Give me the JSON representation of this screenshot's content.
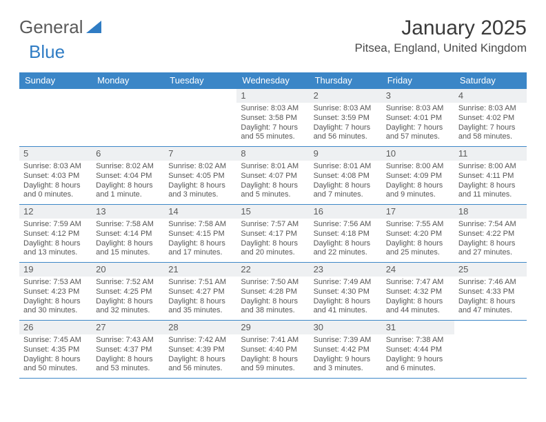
{
  "brand": {
    "word1": "General",
    "word2": "Blue"
  },
  "title": "January 2025",
  "location": "Pitsea, England, United Kingdom",
  "colors": {
    "header_bg": "#3b86c7",
    "header_text": "#ffffff",
    "daynum_bg": "#eef0f2",
    "rule": "#3b86c7",
    "body_text": "#555555",
    "brand_grey": "#5a5a5a",
    "brand_blue": "#2f7cc4"
  },
  "day_names": [
    "Sunday",
    "Monday",
    "Tuesday",
    "Wednesday",
    "Thursday",
    "Friday",
    "Saturday"
  ],
  "weeks": [
    [
      null,
      null,
      null,
      {
        "n": "1",
        "sr": "Sunrise: 8:03 AM",
        "ss": "Sunset: 3:58 PM",
        "d1": "Daylight: 7 hours",
        "d2": "and 55 minutes."
      },
      {
        "n": "2",
        "sr": "Sunrise: 8:03 AM",
        "ss": "Sunset: 3:59 PM",
        "d1": "Daylight: 7 hours",
        "d2": "and 56 minutes."
      },
      {
        "n": "3",
        "sr": "Sunrise: 8:03 AM",
        "ss": "Sunset: 4:01 PM",
        "d1": "Daylight: 7 hours",
        "d2": "and 57 minutes."
      },
      {
        "n": "4",
        "sr": "Sunrise: 8:03 AM",
        "ss": "Sunset: 4:02 PM",
        "d1": "Daylight: 7 hours",
        "d2": "and 58 minutes."
      }
    ],
    [
      {
        "n": "5",
        "sr": "Sunrise: 8:03 AM",
        "ss": "Sunset: 4:03 PM",
        "d1": "Daylight: 8 hours",
        "d2": "and 0 minutes."
      },
      {
        "n": "6",
        "sr": "Sunrise: 8:02 AM",
        "ss": "Sunset: 4:04 PM",
        "d1": "Daylight: 8 hours",
        "d2": "and 1 minute."
      },
      {
        "n": "7",
        "sr": "Sunrise: 8:02 AM",
        "ss": "Sunset: 4:05 PM",
        "d1": "Daylight: 8 hours",
        "d2": "and 3 minutes."
      },
      {
        "n": "8",
        "sr": "Sunrise: 8:01 AM",
        "ss": "Sunset: 4:07 PM",
        "d1": "Daylight: 8 hours",
        "d2": "and 5 minutes."
      },
      {
        "n": "9",
        "sr": "Sunrise: 8:01 AM",
        "ss": "Sunset: 4:08 PM",
        "d1": "Daylight: 8 hours",
        "d2": "and 7 minutes."
      },
      {
        "n": "10",
        "sr": "Sunrise: 8:00 AM",
        "ss": "Sunset: 4:09 PM",
        "d1": "Daylight: 8 hours",
        "d2": "and 9 minutes."
      },
      {
        "n": "11",
        "sr": "Sunrise: 8:00 AM",
        "ss": "Sunset: 4:11 PM",
        "d1": "Daylight: 8 hours",
        "d2": "and 11 minutes."
      }
    ],
    [
      {
        "n": "12",
        "sr": "Sunrise: 7:59 AM",
        "ss": "Sunset: 4:12 PM",
        "d1": "Daylight: 8 hours",
        "d2": "and 13 minutes."
      },
      {
        "n": "13",
        "sr": "Sunrise: 7:58 AM",
        "ss": "Sunset: 4:14 PM",
        "d1": "Daylight: 8 hours",
        "d2": "and 15 minutes."
      },
      {
        "n": "14",
        "sr": "Sunrise: 7:58 AM",
        "ss": "Sunset: 4:15 PM",
        "d1": "Daylight: 8 hours",
        "d2": "and 17 minutes."
      },
      {
        "n": "15",
        "sr": "Sunrise: 7:57 AM",
        "ss": "Sunset: 4:17 PM",
        "d1": "Daylight: 8 hours",
        "d2": "and 20 minutes."
      },
      {
        "n": "16",
        "sr": "Sunrise: 7:56 AM",
        "ss": "Sunset: 4:18 PM",
        "d1": "Daylight: 8 hours",
        "d2": "and 22 minutes."
      },
      {
        "n": "17",
        "sr": "Sunrise: 7:55 AM",
        "ss": "Sunset: 4:20 PM",
        "d1": "Daylight: 8 hours",
        "d2": "and 25 minutes."
      },
      {
        "n": "18",
        "sr": "Sunrise: 7:54 AM",
        "ss": "Sunset: 4:22 PM",
        "d1": "Daylight: 8 hours",
        "d2": "and 27 minutes."
      }
    ],
    [
      {
        "n": "19",
        "sr": "Sunrise: 7:53 AM",
        "ss": "Sunset: 4:23 PM",
        "d1": "Daylight: 8 hours",
        "d2": "and 30 minutes."
      },
      {
        "n": "20",
        "sr": "Sunrise: 7:52 AM",
        "ss": "Sunset: 4:25 PM",
        "d1": "Daylight: 8 hours",
        "d2": "and 32 minutes."
      },
      {
        "n": "21",
        "sr": "Sunrise: 7:51 AM",
        "ss": "Sunset: 4:27 PM",
        "d1": "Daylight: 8 hours",
        "d2": "and 35 minutes."
      },
      {
        "n": "22",
        "sr": "Sunrise: 7:50 AM",
        "ss": "Sunset: 4:28 PM",
        "d1": "Daylight: 8 hours",
        "d2": "and 38 minutes."
      },
      {
        "n": "23",
        "sr": "Sunrise: 7:49 AM",
        "ss": "Sunset: 4:30 PM",
        "d1": "Daylight: 8 hours",
        "d2": "and 41 minutes."
      },
      {
        "n": "24",
        "sr": "Sunrise: 7:47 AM",
        "ss": "Sunset: 4:32 PM",
        "d1": "Daylight: 8 hours",
        "d2": "and 44 minutes."
      },
      {
        "n": "25",
        "sr": "Sunrise: 7:46 AM",
        "ss": "Sunset: 4:33 PM",
        "d1": "Daylight: 8 hours",
        "d2": "and 47 minutes."
      }
    ],
    [
      {
        "n": "26",
        "sr": "Sunrise: 7:45 AM",
        "ss": "Sunset: 4:35 PM",
        "d1": "Daylight: 8 hours",
        "d2": "and 50 minutes."
      },
      {
        "n": "27",
        "sr": "Sunrise: 7:43 AM",
        "ss": "Sunset: 4:37 PM",
        "d1": "Daylight: 8 hours",
        "d2": "and 53 minutes."
      },
      {
        "n": "28",
        "sr": "Sunrise: 7:42 AM",
        "ss": "Sunset: 4:39 PM",
        "d1": "Daylight: 8 hours",
        "d2": "and 56 minutes."
      },
      {
        "n": "29",
        "sr": "Sunrise: 7:41 AM",
        "ss": "Sunset: 4:40 PM",
        "d1": "Daylight: 8 hours",
        "d2": "and 59 minutes."
      },
      {
        "n": "30",
        "sr": "Sunrise: 7:39 AM",
        "ss": "Sunset: 4:42 PM",
        "d1": "Daylight: 9 hours",
        "d2": "and 3 minutes."
      },
      {
        "n": "31",
        "sr": "Sunrise: 7:38 AM",
        "ss": "Sunset: 4:44 PM",
        "d1": "Daylight: 9 hours",
        "d2": "and 6 minutes."
      },
      null
    ]
  ]
}
